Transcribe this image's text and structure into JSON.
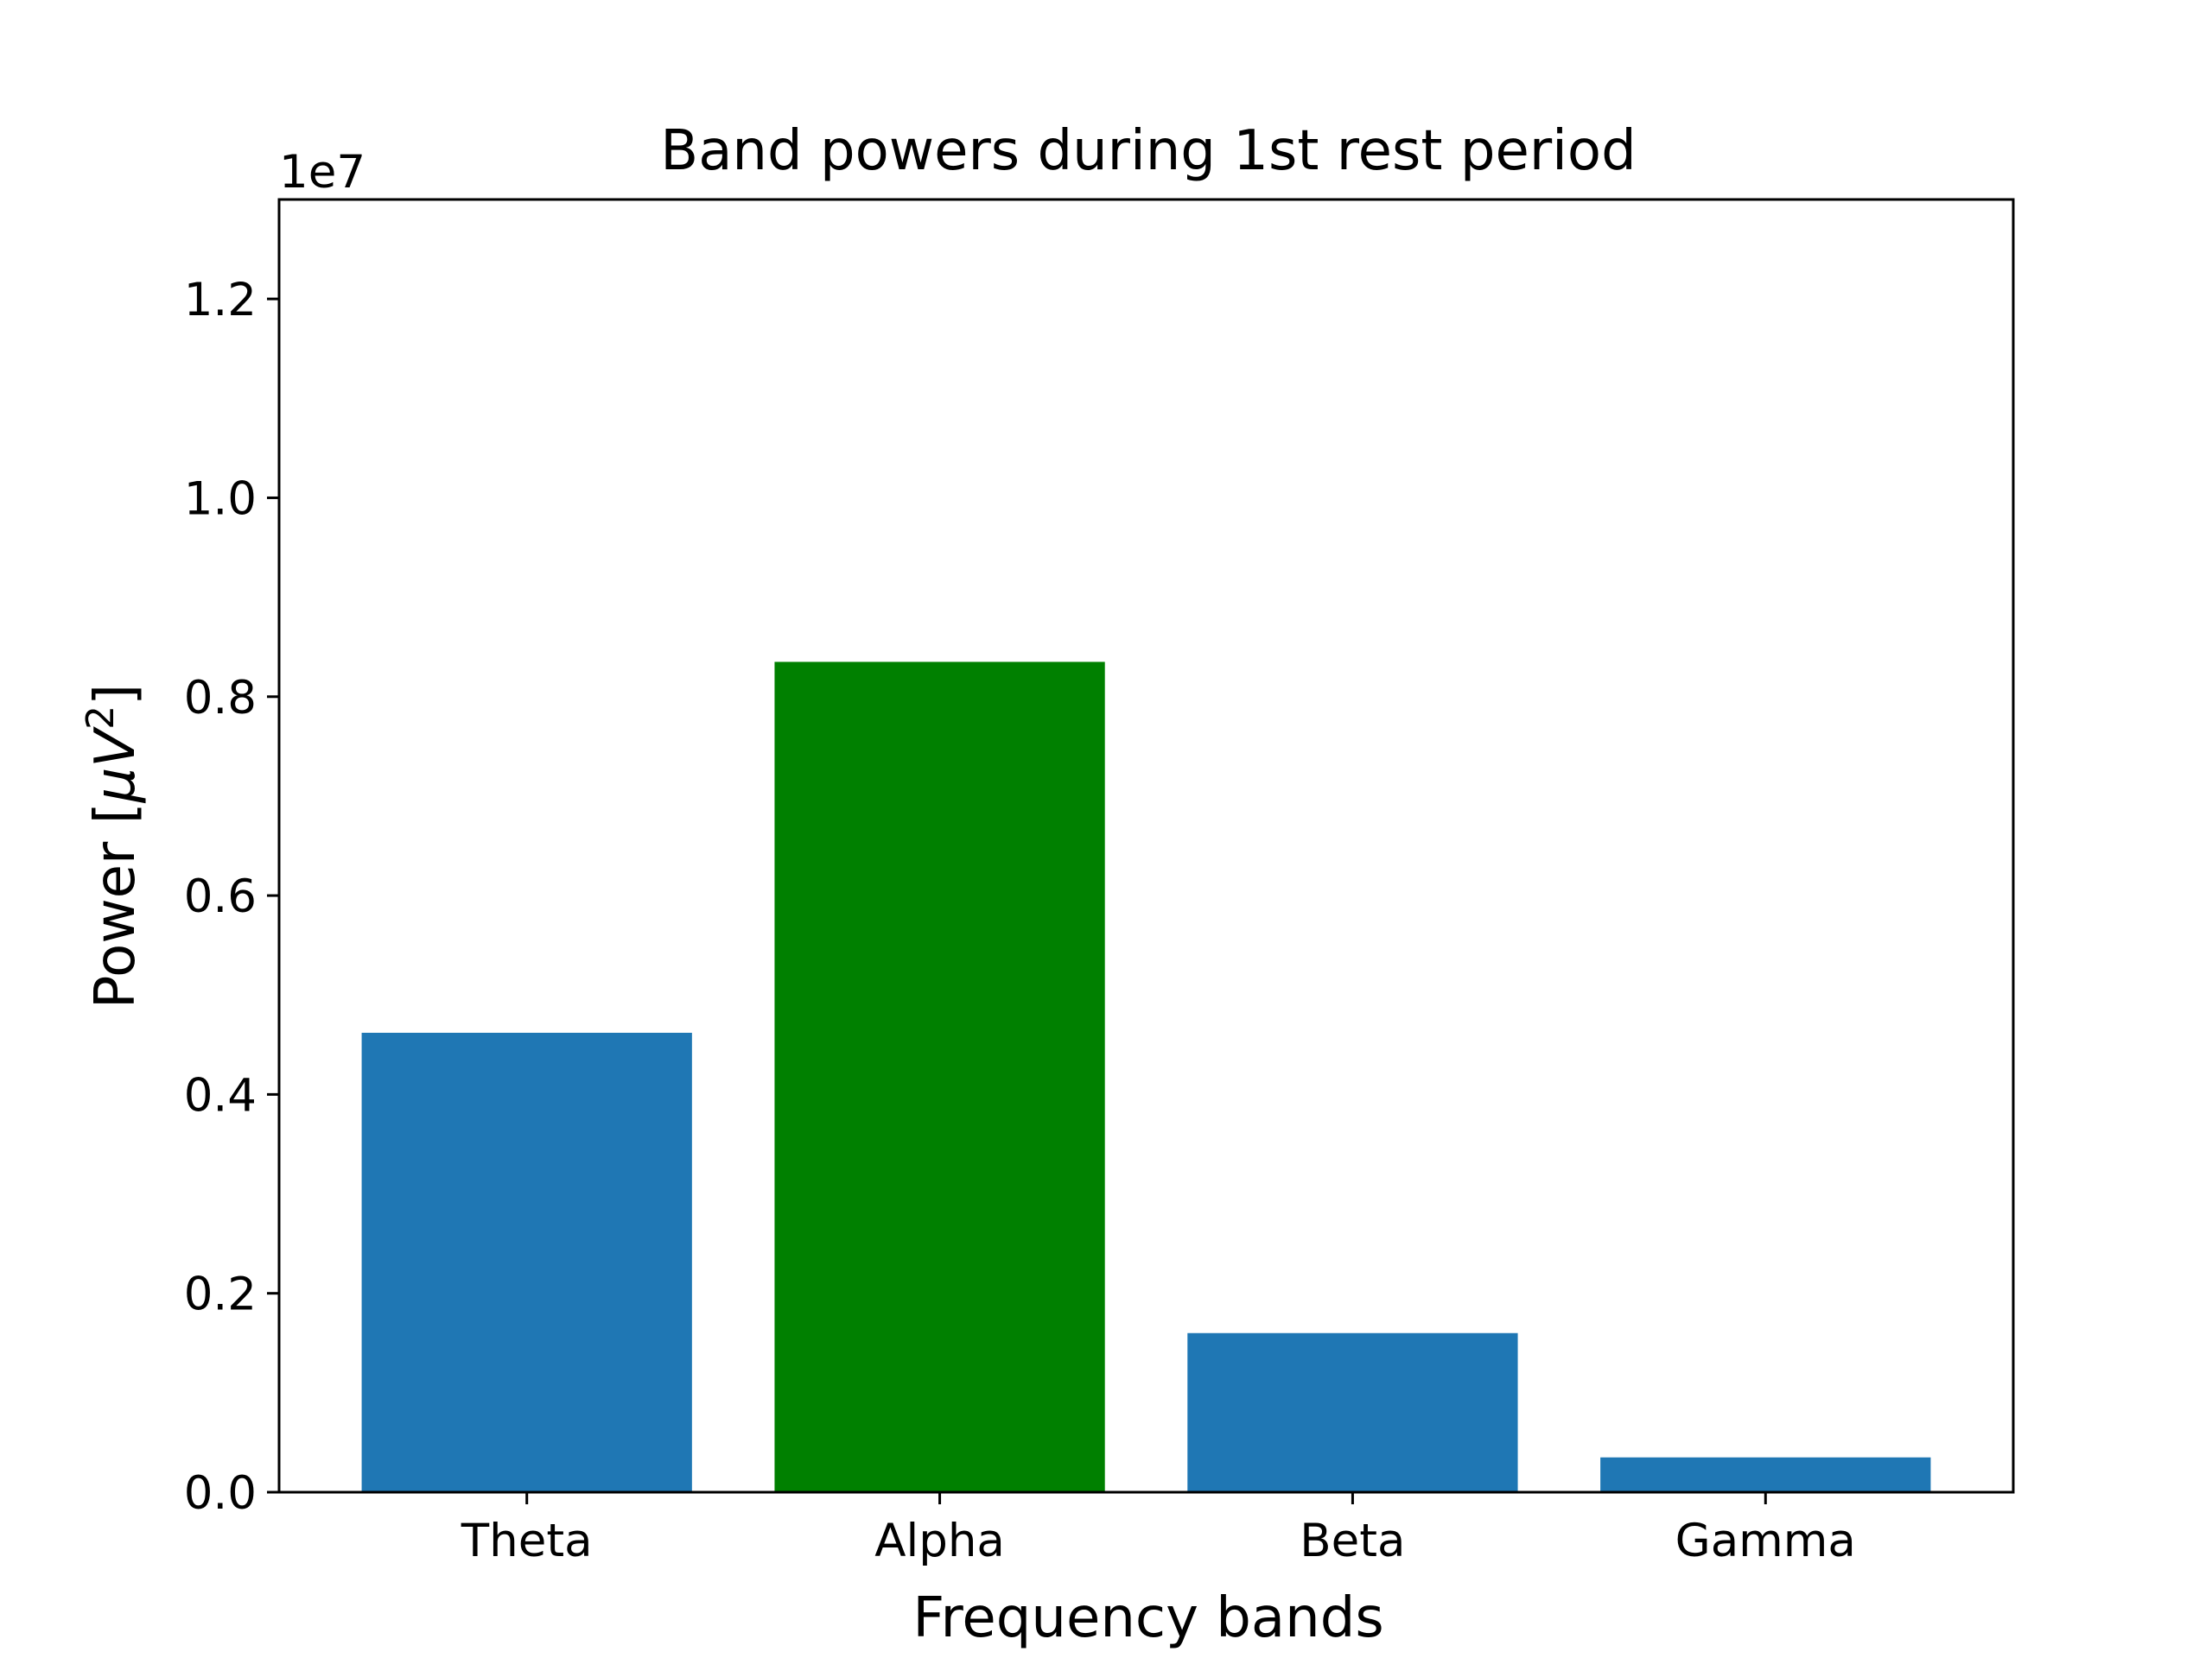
{
  "chart_data": {
    "type": "bar",
    "title": "Band powers during 1st rest period",
    "xlabel": "Frequency bands",
    "ylabel": {
      "prefix": "Power [",
      "mu": "μ",
      "var": "V",
      "exp": "2",
      "suffix": "]"
    },
    "y_offset_label": "1e7",
    "categories": [
      "Theta",
      "Alpha",
      "Beta",
      "Gamma"
    ],
    "values": [
      4620000,
      8350000,
      1600000,
      350000
    ],
    "bar_colors": [
      "#1f77b4",
      "#008000",
      "#1f77b4",
      "#1f77b4"
    ],
    "ylim": [
      0,
      13000000
    ],
    "y_scale": 10000000,
    "y_ticks": [
      0,
      0.2,
      0.4,
      0.6,
      0.8,
      1.0,
      1.2
    ],
    "y_tick_labels": [
      "0.0",
      "0.2",
      "0.4",
      "0.6",
      "0.8",
      "1.0",
      "1.2"
    ],
    "grid": false,
    "legend": "none"
  }
}
